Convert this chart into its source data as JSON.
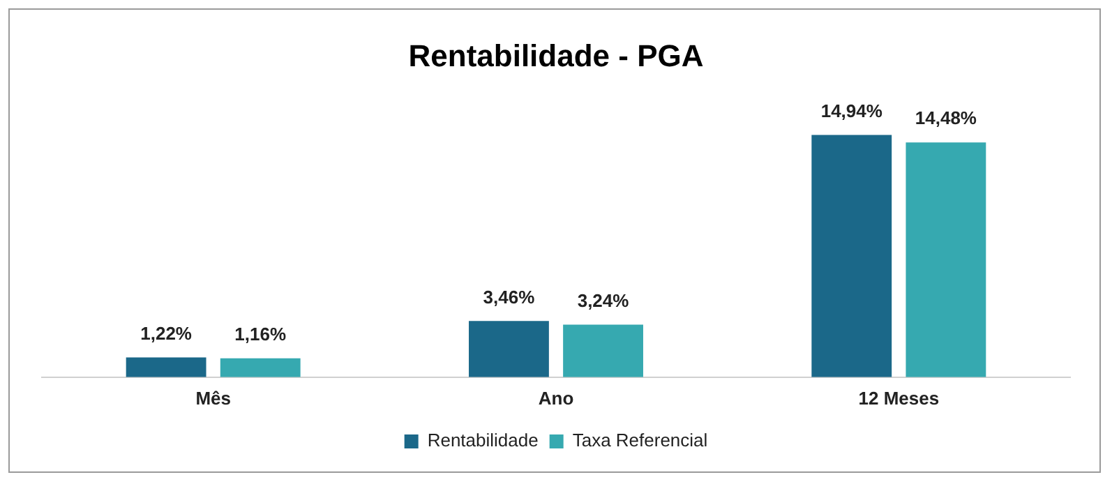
{
  "chart_data": {
    "type": "bar",
    "title": "Rentabilidade - PGA",
    "categories": [
      "Mês",
      "Ano",
      "12 Meses"
    ],
    "series": [
      {
        "name": "Rentabilidade",
        "color": "#1b6889",
        "values": [
          1.22,
          3.46,
          14.94
        ],
        "value_labels": [
          "1,22%",
          "3,46%",
          "14,94%"
        ]
      },
      {
        "name": "Taxa Referencial",
        "color": "#36a9b0",
        "values": [
          1.16,
          3.24,
          14.48
        ],
        "value_labels": [
          "1,16%",
          "3,24%",
          "14,48%"
        ]
      }
    ],
    "legend": "bottom",
    "grid": false
  }
}
